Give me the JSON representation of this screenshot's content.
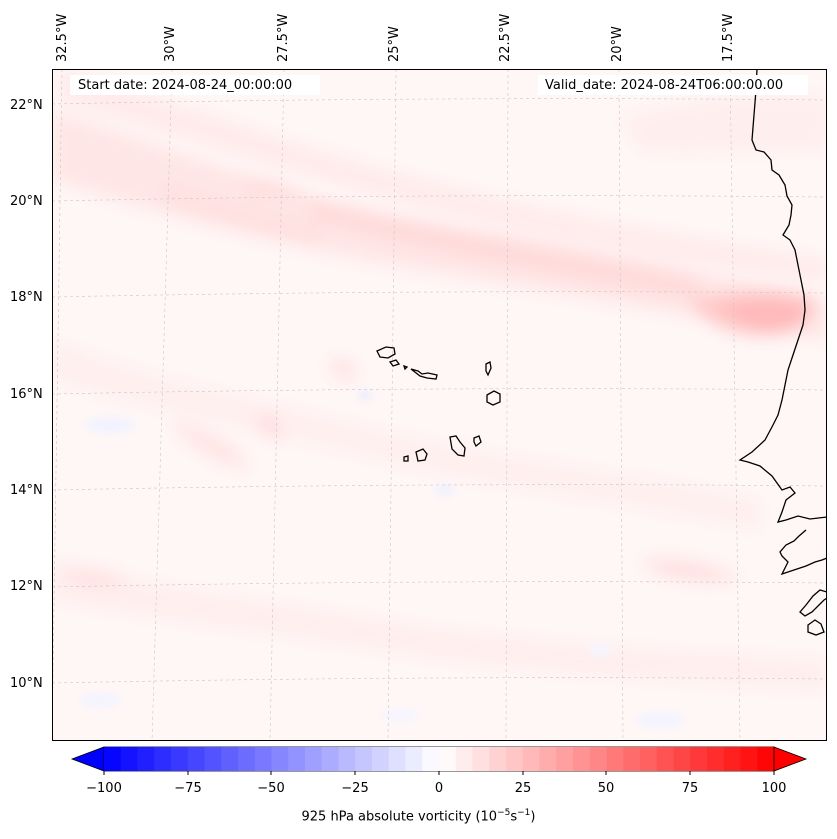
{
  "map": {
    "lon_labels": [
      "32.5°W",
      "30°W",
      "27.5°W",
      "25°W",
      "22.5°W",
      "20°W",
      "17.5°W"
    ],
    "lat_labels": [
      "22°N",
      "20°N",
      "18°N",
      "16°N",
      "14°N",
      "12°N",
      "10°N"
    ],
    "start_date": "Start date: 2024-08-24_00:00:00",
    "valid_date": "Valid_date: 2024-08-24T06:00:00.00",
    "field_name": "925 hPa absolute vorticity",
    "colors": {
      "neg_max": "#0000ff",
      "pos_max": "#ff0000",
      "zero": "#ffffff",
      "coast": "#000000"
    }
  },
  "colorbar": {
    "ticks": [
      "−100",
      "−75",
      "−50",
      "−25",
      "0",
      "25",
      "50",
      "75",
      "100"
    ],
    "min": -100,
    "max": 100,
    "title_prefix": "925 hPa absolute vorticity (10",
    "title_exp1": "−5",
    "title_mid": "s",
    "title_exp2": "−1",
    "title_suffix": ")"
  }
}
